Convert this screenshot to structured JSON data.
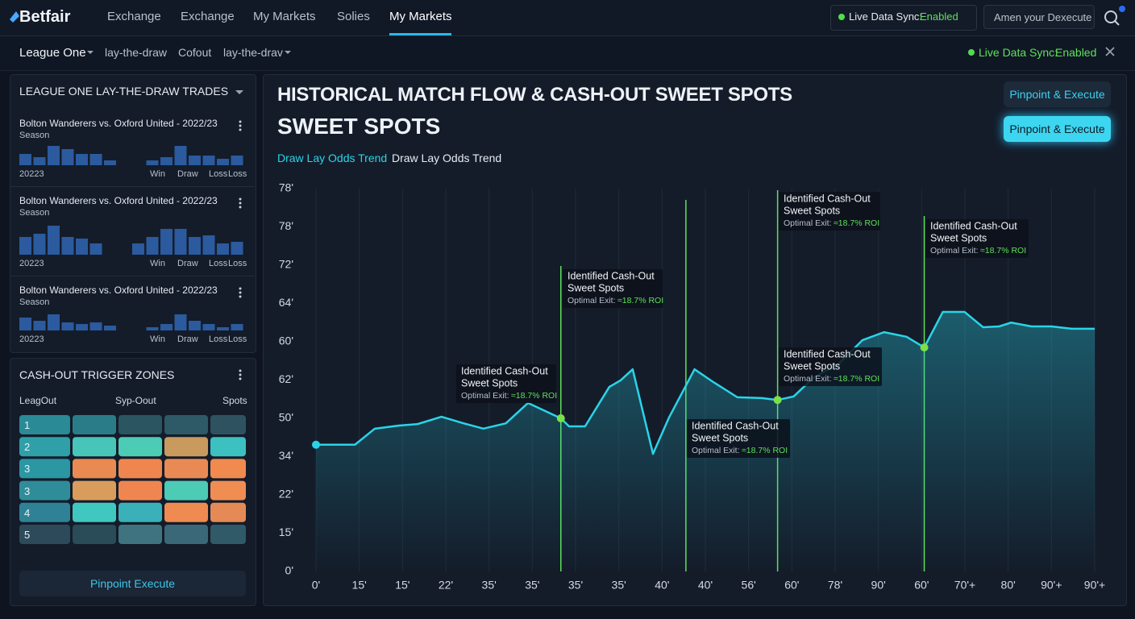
{
  "nav": {
    "logo": "Betfair",
    "links": [
      "Exchange",
      "Exchange",
      "My Markets",
      "Solies",
      "My Markets"
    ],
    "sync_label": "Live Data Sync:",
    "sync_state": "Enabled",
    "search_placeholder": "Amen your Dexecute"
  },
  "subnav": {
    "filters": [
      "League One",
      "lay-the-draw",
      "Cofout",
      "lay-the-drav"
    ],
    "sync_label": "Live Data Sync:",
    "sync_state": "Enabled"
  },
  "trades": {
    "title": "LEAGUE ONE LAY-THE-DRAW TRADES",
    "bar_color": "#2b5a9e",
    "items": [
      {
        "match": "Bolton Wanderers vs. Oxford United - 2022/23",
        "season": "Season",
        "bars": [
          14,
          10,
          24,
          20,
          14,
          14,
          6,
          0,
          0,
          6,
          10,
          24,
          12,
          12,
          8,
          12
        ],
        "labels": [
          "20223",
          "Win",
          "Draw",
          "Loss",
          "Loss"
        ]
      },
      {
        "match": "Bolton Wanderers vs. Oxford United - 2022/23",
        "season": "Season",
        "bars": [
          22,
          26,
          36,
          22,
          20,
          14,
          0,
          0,
          14,
          22,
          32,
          32,
          22,
          24,
          14,
          16
        ],
        "labels": [
          "20223",
          "Win",
          "Draw",
          "Loss",
          "Loss"
        ]
      },
      {
        "match": "Bolton Wanderers vs. Oxford United - 2022/23",
        "season": "Season",
        "bars": [
          16,
          12,
          20,
          10,
          8,
          10,
          6,
          0,
          0,
          4,
          8,
          20,
          12,
          8,
          4,
          8
        ],
        "labels": [
          "20223",
          "Win",
          "Draw",
          "Loss",
          "Loss"
        ]
      }
    ]
  },
  "trigger_zones": {
    "title": "CASH-OUT TRIGGER ZONES",
    "columns": [
      "LeagOut",
      "Syp-Oout",
      "Spots"
    ],
    "rows": [
      {
        "label": "1",
        "colors": [
          "#2a8a96",
          "#2a7d88",
          "#2b5560",
          "#2d5a66",
          "#2e5260"
        ]
      },
      {
        "label": "2",
        "colors": [
          "#2f9fa8",
          "#46c5b8",
          "#4ccbb5",
          "#c99a5e",
          "#3cc0c0"
        ]
      },
      {
        "label": "3",
        "colors": [
          "#2a97a3",
          "#e88a52",
          "#ef8650",
          "#e98a55",
          "#f08a4f"
        ]
      },
      {
        "label": "3",
        "colors": [
          "#2f8d99",
          "#d89c5c",
          "#ef8650",
          "#4ccbb5",
          "#f08d52"
        ]
      },
      {
        "label": "4",
        "colors": [
          "#2f8296",
          "#3fc7c0",
          "#3ab0b8",
          "#ef8a50",
          "#e58a55"
        ]
      },
      {
        "label": "5",
        "colors": [
          "#2d4a5a",
          "#2a4b58",
          "#3f7380",
          "#3a6878",
          "#305a68"
        ]
      }
    ],
    "button": "Pinpoint Execute"
  },
  "chart_data": {
    "type": "line",
    "title": "HISTORICAL MATCH FLOW & CASH-OUT SWEET SPOTS",
    "subtitle": "SWEET SPOTS",
    "legend_secondary": "Draw Lay Odds Trend",
    "buttons": [
      "Pinpoint & Execute",
      "Pinpoint & Execute"
    ],
    "series": [
      {
        "name": "Draw Lay Odds Trend",
        "color": "#2ad4e8",
        "x": [
          0,
          0.9,
          1.36,
          1.92,
          2.35,
          2.9,
          3.41,
          3.87,
          4.39,
          4.9,
          5.66,
          5.85,
          6.22,
          6.78,
          7.04,
          7.32,
          7.79,
          8.16,
          8.75,
          9.18,
          9.74,
          10.3,
          10.67,
          11.04,
          11.51,
          12.07,
          12.63,
          13.13,
          13.65,
          14.06,
          14.49,
          14.99,
          15.42,
          15.79,
          16.07,
          16.54,
          17.0,
          17.47,
          18.0
        ],
        "values": [
          3.31,
          3.31,
          3.73,
          3.81,
          3.85,
          4.04,
          3.87,
          3.73,
          3.87,
          4.4,
          4.0,
          3.79,
          3.79,
          4.82,
          4.99,
          5.28,
          3.07,
          4.02,
          5.28,
          4.95,
          4.55,
          4.53,
          4.48,
          4.57,
          5.07,
          5.41,
          6.04,
          6.25,
          6.13,
          5.85,
          6.78,
          6.78,
          6.38,
          6.4,
          6.5,
          6.4,
          6.4,
          6.34,
          6.34
        ]
      }
    ],
    "xlim": [
      0,
      18
    ],
    "xticks": [
      {
        "value": 0,
        "label": "0'"
      },
      {
        "value": 1,
        "label": "15'"
      },
      {
        "value": 2,
        "label": "15'"
      },
      {
        "value": 3,
        "label": "22'"
      },
      {
        "value": 4,
        "label": "35'"
      },
      {
        "value": 5,
        "label": "35'"
      },
      {
        "value": 6,
        "label": "35'"
      },
      {
        "value": 7,
        "label": "35'"
      },
      {
        "value": 8,
        "label": "40'"
      },
      {
        "value": 9,
        "label": "40'"
      },
      {
        "value": 10,
        "label": "56'"
      },
      {
        "value": 11,
        "label": "60'"
      },
      {
        "value": 12,
        "label": "78'"
      },
      {
        "value": 13,
        "label": "90'"
      },
      {
        "value": 14,
        "label": "60'"
      },
      {
        "value": 15,
        "label": "70'+"
      },
      {
        "value": 16,
        "label": "80'"
      },
      {
        "value": 17,
        "label": "90'+"
      },
      {
        "value": 18,
        "label": "90'+"
      }
    ],
    "ylim": [
      0,
      10
    ],
    "yticks": [
      {
        "value": 0,
        "label": "0'"
      },
      {
        "value": 1,
        "label": "15'"
      },
      {
        "value": 2,
        "label": "22'"
      },
      {
        "value": 3,
        "label": "34'"
      },
      {
        "value": 4,
        "label": "50'"
      },
      {
        "value": 5,
        "label": "62'"
      },
      {
        "value": 6,
        "label": "60'"
      },
      {
        "value": 7,
        "label": "64'"
      },
      {
        "value": 8,
        "label": "72'"
      },
      {
        "value": 9,
        "label": "78'"
      },
      {
        "value": 10,
        "label": "78'"
      }
    ],
    "grid": true,
    "cashout_lines": [
      5.66,
      8.55,
      10.67,
      14.06
    ],
    "sweet_spots": {
      "color": "#7be04a",
      "x": [
        5.66,
        10.67,
        14.06
      ],
      "values": [
        4.0,
        4.48,
        5.85
      ]
    },
    "annotations": [
      {
        "title": "Identified Cash-Out",
        "subtitle": "Sweet Spots",
        "exit_label": "Optimal Exit:",
        "exit_value": "≈18.7% ROI"
      },
      {
        "title": "Identified Cash-Out",
        "subtitle": "Sweet Spots",
        "exit_label": "Optimal Exit:",
        "exit_value": "≈18.7% ROI"
      },
      {
        "title": "Identified Cash-Out",
        "subtitle": "Sweet Spots",
        "exit_label": "Optimal Exit:",
        "exit_value": "≈18.7% ROI"
      },
      {
        "title": "Identified Cash-Out",
        "subtitle": "Sweet Spots",
        "exit_label": "Optimal Exit:",
        "exit_value": "≈18.7% ROI"
      },
      {
        "title": "Identified Cash-Out",
        "subtitle": "Sweet Spots",
        "exit_label": "Optimal Exit:",
        "exit_value": "≈18.7% ROI"
      },
      {
        "title": "Identified Cash-Out",
        "subtitle": "Sweet Spots",
        "exit_label": "Optimal Exit:",
        "exit_value": "≈18.7% ROI"
      }
    ]
  }
}
